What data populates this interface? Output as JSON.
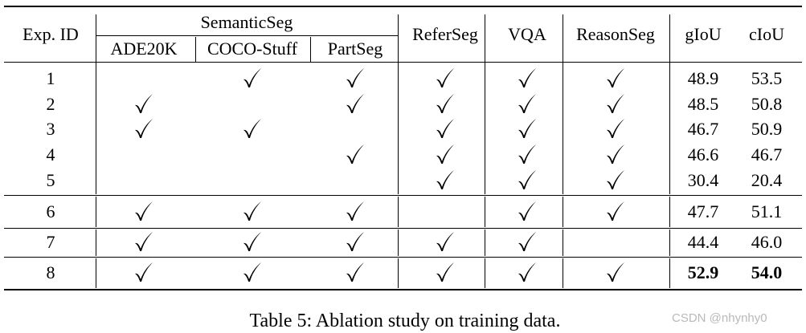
{
  "table": {
    "headers": {
      "exp_id": "Exp. ID",
      "semantic_seg": "SemanticSeg",
      "ade20k": "ADE20K",
      "coco_stuff": "COCO-Stuff",
      "partseg": "PartSeg",
      "referseg": "ReferSeg",
      "vqa": "VQA",
      "reasonseg": "ReasonSeg",
      "giou": "gIoU",
      "ciou": "cIoU"
    },
    "rows": [
      {
        "id": "1",
        "ade20k": false,
        "coco": true,
        "part": true,
        "refer": true,
        "vqa": true,
        "reason": true,
        "giou": "48.9",
        "ciou": "53.5",
        "bold": false
      },
      {
        "id": "2",
        "ade20k": true,
        "coco": false,
        "part": true,
        "refer": true,
        "vqa": true,
        "reason": true,
        "giou": "48.5",
        "ciou": "50.8",
        "bold": false
      },
      {
        "id": "3",
        "ade20k": true,
        "coco": true,
        "part": false,
        "refer": true,
        "vqa": true,
        "reason": true,
        "giou": "46.7",
        "ciou": "50.9",
        "bold": false
      },
      {
        "id": "4",
        "ade20k": false,
        "coco": false,
        "part": true,
        "refer": true,
        "vqa": true,
        "reason": true,
        "giou": "46.6",
        "ciou": "46.7",
        "bold": false
      },
      {
        "id": "5",
        "ade20k": false,
        "coco": false,
        "part": false,
        "refer": true,
        "vqa": true,
        "reason": true,
        "giou": "30.4",
        "ciou": "20.4",
        "bold": false
      },
      {
        "id": "6",
        "ade20k": true,
        "coco": true,
        "part": true,
        "refer": false,
        "vqa": true,
        "reason": true,
        "giou": "47.7",
        "ciou": "51.1",
        "bold": false
      },
      {
        "id": "7",
        "ade20k": true,
        "coco": true,
        "part": true,
        "refer": true,
        "vqa": true,
        "reason": false,
        "giou": "44.4",
        "ciou": "46.0",
        "bold": false
      },
      {
        "id": "8",
        "ade20k": true,
        "coco": true,
        "part": true,
        "refer": true,
        "vqa": true,
        "reason": true,
        "giou": "52.9",
        "ciou": "54.0",
        "bold": true
      }
    ]
  },
  "caption": "Table 5: Ablation study on training data.",
  "watermark": "CSDN @nhynhy0"
}
